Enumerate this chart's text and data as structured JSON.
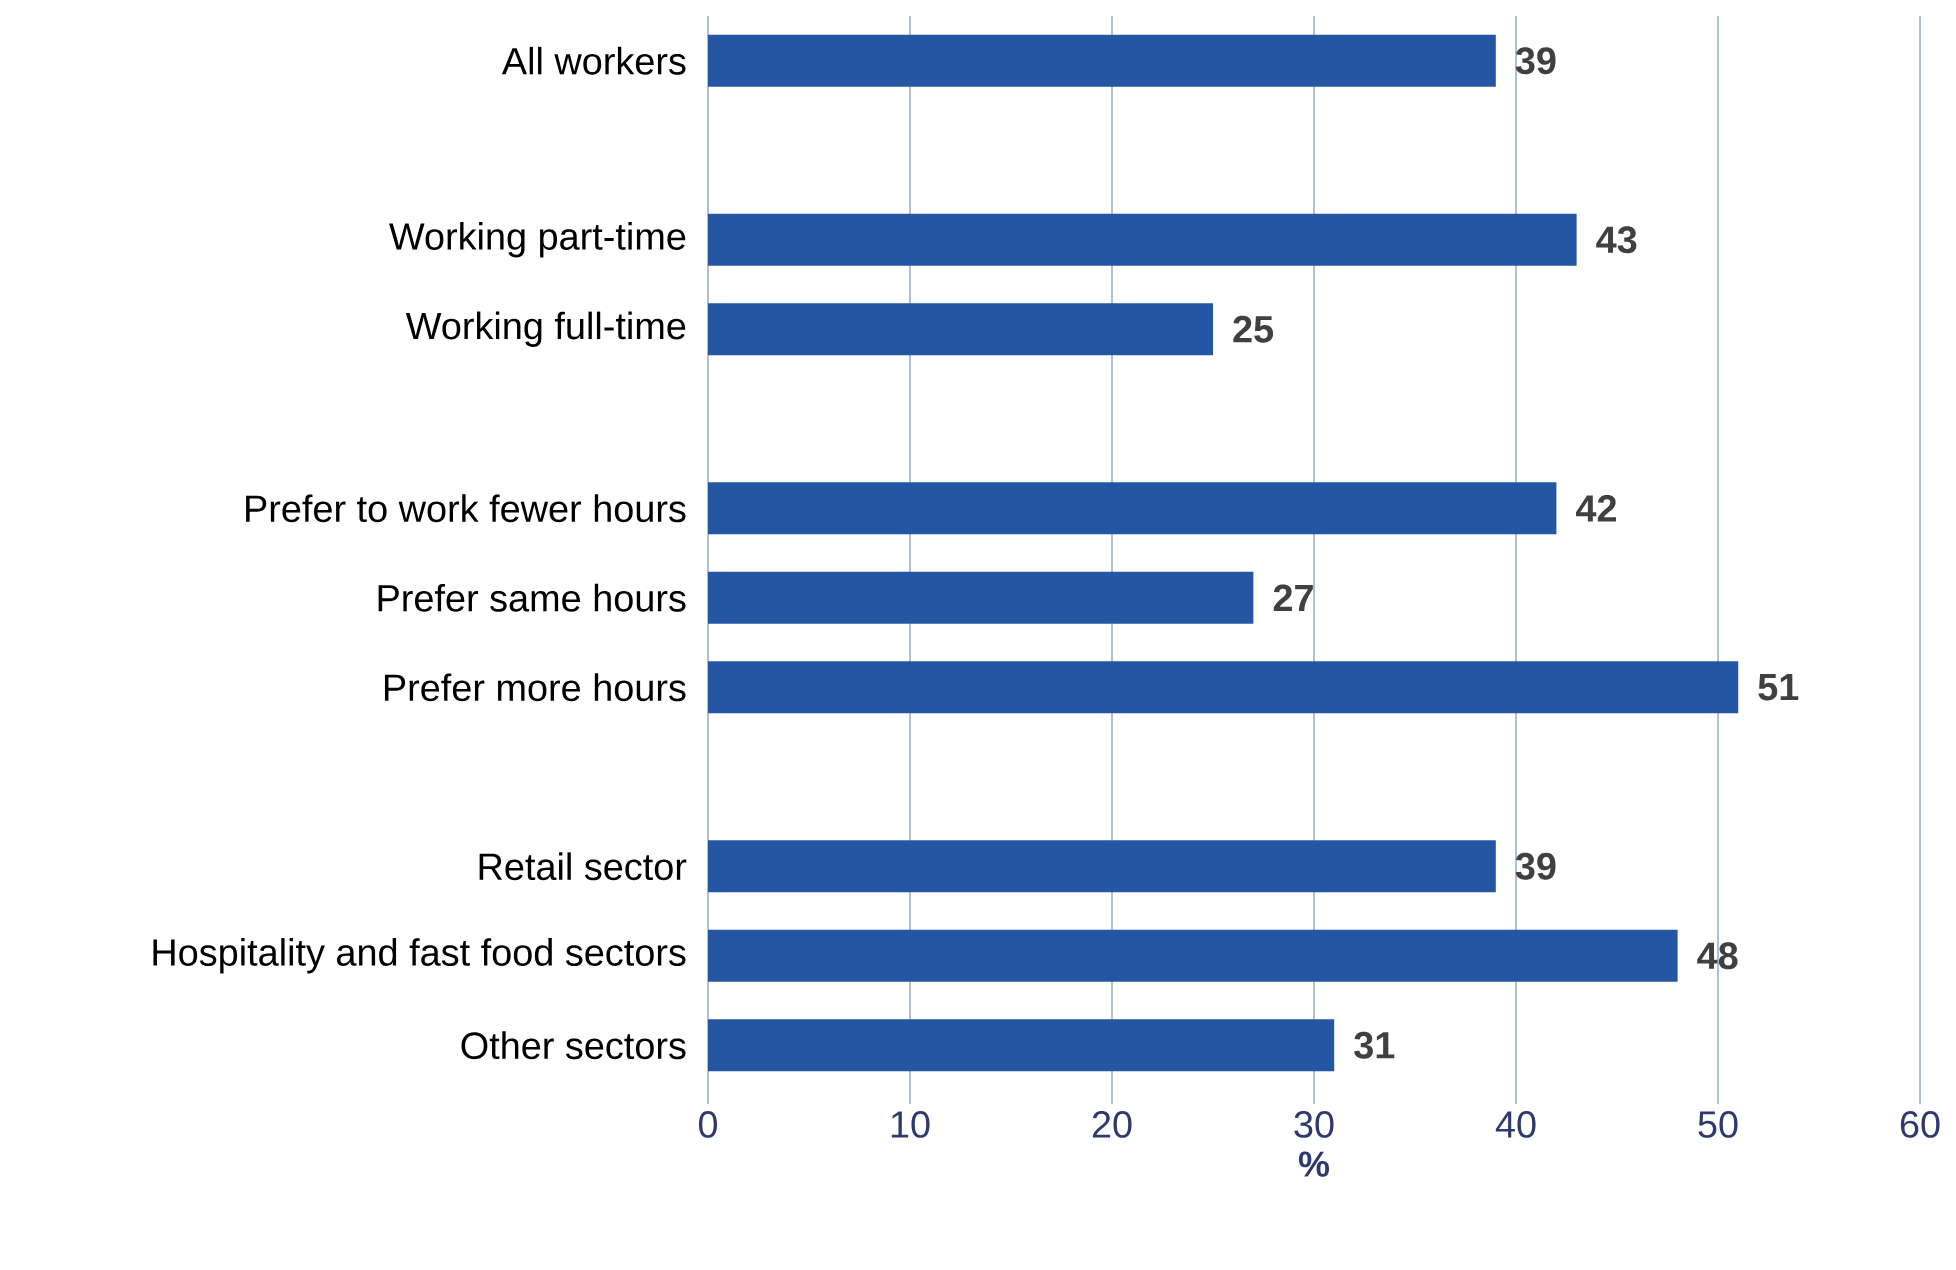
{
  "chart_data": {
    "type": "bar",
    "orientation": "horizontal",
    "xlabel": "%",
    "categories": [
      "All workers",
      null,
      "Working part-time",
      "Working full-time",
      null,
      "Prefer to work fewer hours",
      "Prefer same hours",
      "Prefer more hours",
      null,
      "Retail sector",
      "Hospitality and fast food sectors",
      "Other sectors"
    ],
    "values": [
      39,
      null,
      43,
      25,
      null,
      42,
      27,
      51,
      null,
      39,
      48,
      31
    ],
    "color": "#2456a4",
    "xlim": [
      0,
      60
    ],
    "xticks": [
      0,
      10,
      20,
      30,
      40,
      50,
      60
    ],
    "grid": "x",
    "data_labels": true
  }
}
